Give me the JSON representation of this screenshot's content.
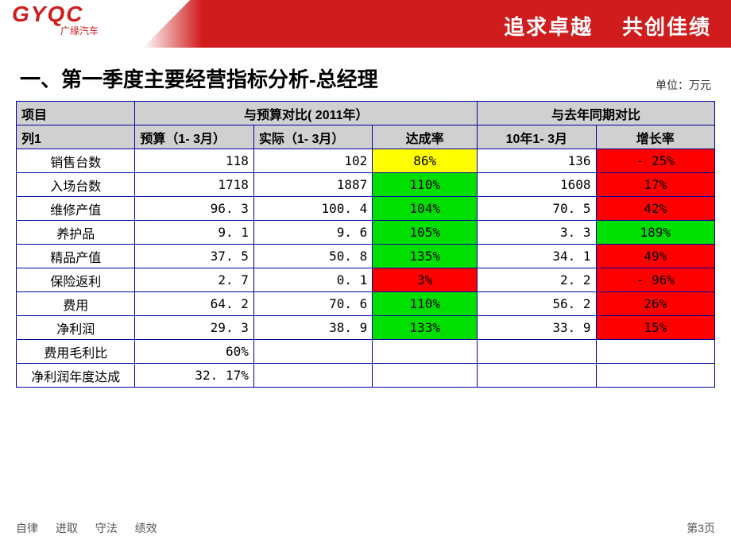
{
  "header": {
    "logo_main": "GYQC",
    "logo_sub": "广缘汽车",
    "slogan_left": "追求卓越",
    "slogan_right": "共创佳绩"
  },
  "title": "一、第一季度主要经营指标分析-总经理",
  "unit_label": "单位：万元",
  "colors": {
    "yellow": "#ffff00",
    "green": "#00e000",
    "red": "#ff0000",
    "header_bg": "#d0d0d0",
    "border": "#0000a0"
  },
  "table": {
    "top_headers": {
      "item": "项目",
      "budget_compare": "与预算对比( 2011年）",
      "year_compare": "与去年同期对比"
    },
    "sub_headers": {
      "col1": "列1",
      "budget": "预算（1- 3月）",
      "actual": "实际（1- 3月）",
      "achieve": "达成率",
      "lastyear": "10年1- 3月",
      "growth": "增长率"
    },
    "rows": [
      {
        "name": "销售台数",
        "budget": "118",
        "actual": "102",
        "achieve": "86%",
        "ach_c": "yellow",
        "lastyear": "136",
        "growth": "- 25%",
        "gr_c": "red"
      },
      {
        "name": "入场台数",
        "budget": "1718",
        "actual": "1887",
        "achieve": "110%",
        "ach_c": "green",
        "lastyear": "1608",
        "growth": "17%",
        "gr_c": "red"
      },
      {
        "name": "维修产值",
        "budget": "96. 3",
        "actual": "100. 4",
        "achieve": "104%",
        "ach_c": "green",
        "lastyear": "70. 5",
        "growth": "42%",
        "gr_c": "red"
      },
      {
        "name": "养护品",
        "budget": "9. 1",
        "actual": "9. 6",
        "achieve": "105%",
        "ach_c": "green",
        "lastyear": "3. 3",
        "growth": "189%",
        "gr_c": "green"
      },
      {
        "name": "精品产值",
        "budget": "37. 5",
        "actual": "50. 8",
        "achieve": "135%",
        "ach_c": "green",
        "lastyear": "34. 1",
        "growth": "49%",
        "gr_c": "red"
      },
      {
        "name": "保险返利",
        "budget": "2. 7",
        "actual": "0. 1",
        "achieve": "3%",
        "ach_c": "red",
        "lastyear": "2. 2",
        "growth": "- 96%",
        "gr_c": "red"
      },
      {
        "name": "费用",
        "budget": "64. 2",
        "actual": "70. 6",
        "achieve": "110%",
        "ach_c": "green",
        "lastyear": "56. 2",
        "growth": "26%",
        "gr_c": "red"
      },
      {
        "name": "净利润",
        "budget": "29. 3",
        "actual": "38. 9",
        "achieve": "133%",
        "ach_c": "green",
        "lastyear": "33. 9",
        "growth": "15%",
        "gr_c": "red"
      },
      {
        "name": "费用毛利比",
        "budget": "60%",
        "actual": "",
        "achieve": "",
        "ach_c": "",
        "lastyear": "",
        "growth": "",
        "gr_c": ""
      },
      {
        "name": "净利润年度达成",
        "budget": "32. 17%",
        "actual": "",
        "achieve": "",
        "ach_c": "",
        "lastyear": "",
        "growth": "",
        "gr_c": ""
      }
    ]
  },
  "footer": {
    "values": [
      "自律",
      "进取",
      "守法",
      "绩效"
    ],
    "page": "第3页"
  }
}
